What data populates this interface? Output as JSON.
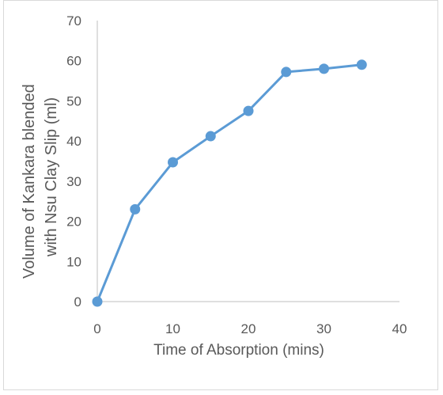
{
  "chart_data": {
    "type": "line",
    "title": "",
    "xlabel": "Time of Absorption (mins)",
    "ylabel_lines": [
      "Volume of Kankara  blended",
      "with Nsu Clay Slip (ml)"
    ],
    "x": [
      0,
      5,
      10,
      15,
      20,
      25,
      30,
      35
    ],
    "series": [
      {
        "values": [
          0,
          23,
          34.7,
          41.2,
          47.5,
          57.2,
          58,
          59
        ]
      }
    ],
    "xlim": [
      0,
      40
    ],
    "ylim": [
      0,
      70
    ],
    "xticks": [
      "0",
      "10",
      "20",
      "30",
      "40"
    ],
    "yticks": [
      "0",
      "10",
      "20",
      "30",
      "40",
      "50",
      "60",
      "70"
    ],
    "grid": false,
    "legend": "none",
    "colors": {
      "series": "#5b9bd5",
      "axis": "#bfbfbf",
      "text": "#595959"
    }
  }
}
